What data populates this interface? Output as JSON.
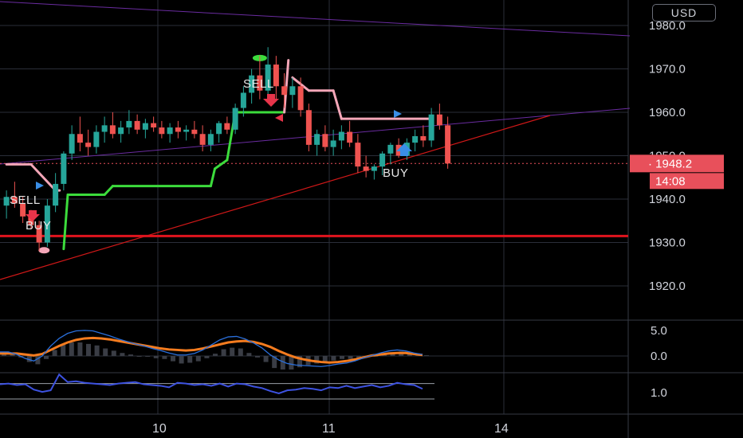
{
  "currency": "USD",
  "price_axis": {
    "ticks": [
      "1980.0",
      "1970.0",
      "1960.0",
      "1950.0",
      "1940.0",
      "1930.0",
      "1920.0"
    ]
  },
  "last_price": {
    "value": "1948.2",
    "countdown": "14:08",
    "color": "#e8505b"
  },
  "time_axis": {
    "ticks": [
      "10",
      "11",
      "14"
    ]
  },
  "macd_axis": {
    "ticks": [
      "5.0",
      "0.0"
    ]
  },
  "osc_axis": {
    "ticks": [
      "1.0"
    ]
  },
  "signals": [
    {
      "label": "SELL",
      "type": "sell"
    },
    {
      "label": "BUY",
      "type": "buy"
    },
    {
      "label": "SELL",
      "type": "sell"
    },
    {
      "label": "BUY",
      "type": "buy"
    }
  ],
  "colors": {
    "up": "#26a69a",
    "down": "#ef5350",
    "trail_bull": "#3cdc3c",
    "trail_bear": "#f4a6b8",
    "macd_line": "#2a6fdb",
    "signal_line": "#f57c1f",
    "osc_line": "#3d52e0",
    "support": "#e0141e",
    "trendline": "#d01818",
    "channel": "#6a2ca0"
  },
  "chart_data": [
    {
      "type": "candlestick",
      "title": "",
      "ylim": [
        1915,
        1985
      ],
      "support_level": 1931.5,
      "last_close": 1948.2,
      "candles": [
        [
          1938.5,
          1942.0,
          1935.5,
          1940.5
        ],
        [
          1940.5,
          1944.0,
          1938.0,
          1939.0
        ],
        [
          1939.0,
          1940.5,
          1934.5,
          1936.0
        ],
        [
          1936.0,
          1937.5,
          1933.0,
          1934.0
        ],
        [
          1934.0,
          1935.0,
          1928.0,
          1930.0
        ],
        [
          1930.0,
          1940.0,
          1929.0,
          1938.5
        ],
        [
          1938.5,
          1946.0,
          1937.0,
          1943.5
        ],
        [
          1943.5,
          1951.0,
          1942.0,
          1950.5
        ],
        [
          1950.5,
          1957.0,
          1949.0,
          1955.0
        ],
        [
          1955.0,
          1959.0,
          1951.0,
          1953.0
        ],
        [
          1953.0,
          1956.0,
          1950.0,
          1952.0
        ],
        [
          1952.0,
          1957.0,
          1950.5,
          1955.5
        ],
        [
          1955.5,
          1959.0,
          1953.0,
          1957.0
        ],
        [
          1957.0,
          1960.0,
          1954.0,
          1955.0
        ],
        [
          1955.0,
          1958.0,
          1953.0,
          1956.5
        ],
        [
          1956.5,
          1960.5,
          1955.0,
          1958.0
        ],
        [
          1958.0,
          1959.5,
          1955.0,
          1956.0
        ],
        [
          1956.0,
          1958.5,
          1954.0,
          1957.5
        ],
        [
          1957.5,
          1959.0,
          1955.5,
          1956.5
        ],
        [
          1956.5,
          1958.0,
          1954.0,
          1955.0
        ],
        [
          1955.0,
          1957.5,
          1953.0,
          1956.5
        ],
        [
          1956.5,
          1958.0,
          1954.0,
          1955.5
        ],
        [
          1955.5,
          1957.0,
          1953.5,
          1956.0
        ],
        [
          1956.0,
          1958.0,
          1954.0,
          1955.0
        ],
        [
          1955.0,
          1957.0,
          1951.0,
          1952.5
        ],
        [
          1952.5,
          1956.0,
          1951.0,
          1955.0
        ],
        [
          1955.0,
          1958.0,
          1953.0,
          1957.5
        ],
        [
          1957.5,
          1959.0,
          1955.0,
          1956.0
        ],
        [
          1956.0,
          1962.0,
          1955.0,
          1961.0
        ],
        [
          1961.0,
          1966.0,
          1959.0,
          1964.5
        ],
        [
          1964.5,
          1970.0,
          1962.0,
          1968.5
        ],
        [
          1968.5,
          1973.0,
          1963.0,
          1965.0
        ],
        [
          1965.0,
          1975.0,
          1963.0,
          1971.0
        ],
        [
          1971.0,
          1973.0,
          1963.0,
          1966.0
        ],
        [
          1966.0,
          1969.0,
          1961.0,
          1964.0
        ],
        [
          1964.0,
          1968.0,
          1961.0,
          1966.0
        ],
        [
          1966.0,
          1968.0,
          1959.0,
          1960.5
        ],
        [
          1960.5,
          1962.0,
          1951.0,
          1952.5
        ],
        [
          1952.5,
          1956.0,
          1950.0,
          1955.0
        ],
        [
          1955.0,
          1957.0,
          1951.0,
          1952.0
        ],
        [
          1952.0,
          1956.0,
          1950.0,
          1953.5
        ],
        [
          1953.5,
          1957.0,
          1951.5,
          1955.5
        ],
        [
          1955.5,
          1958.0,
          1952.0,
          1953.0
        ],
        [
          1953.0,
          1955.0,
          1946.0,
          1947.5
        ],
        [
          1947.5,
          1950.0,
          1945.0,
          1946.5
        ],
        [
          1946.5,
          1948.0,
          1944.5,
          1947.5
        ],
        [
          1947.5,
          1951.0,
          1945.5,
          1950.5
        ],
        [
          1950.5,
          1953.0,
          1948.0,
          1952.5
        ],
        [
          1952.5,
          1954.0,
          1949.5,
          1950.0
        ],
        [
          1950.0,
          1954.0,
          1949.0,
          1953.0
        ],
        [
          1953.0,
          1956.0,
          1951.0,
          1954.5
        ],
        [
          1954.5,
          1957.0,
          1952.0,
          1953.5
        ],
        [
          1953.5,
          1961.0,
          1952.0,
          1959.5
        ],
        [
          1959.5,
          1962.0,
          1956.0,
          1957.0
        ],
        [
          1957.0,
          1959.0,
          1947.0,
          1948.2
        ]
      ],
      "trail_stop": [
        {
          "x": 0,
          "y": 1948.0
        },
        {
          "x": 3,
          "y": 1948.0
        },
        {
          "x": 6,
          "y": 1942.0
        },
        {
          "x": 6.5,
          "y": 1942.0,
          "break": true
        },
        {
          "x": 7,
          "y": 1928.5
        },
        {
          "x": 7.5,
          "y": 1941.0
        },
        {
          "x": 10,
          "y": 1941.0
        },
        {
          "x": 12,
          "y": 1941.0
        },
        {
          "x": 13,
          "y": 1943.0
        },
        {
          "x": 25,
          "y": 1943.0
        },
        {
          "x": 25.5,
          "y": 1947.0
        },
        {
          "x": 27,
          "y": 1949.0
        },
        {
          "x": 28,
          "y": 1960.0
        },
        {
          "x": 34,
          "y": 1960.0
        },
        {
          "x": 34.5,
          "y": 1972.0,
          "break": true
        },
        {
          "x": 35,
          "y": 1968.0
        },
        {
          "x": 37,
          "y": 1965.0
        },
        {
          "x": 40,
          "y": 1965.0
        },
        {
          "x": 41,
          "y": 1958.5
        },
        {
          "x": 52,
          "y": 1958.5
        }
      ]
    },
    {
      "type": "macd",
      "ylim": [
        -3,
        6
      ],
      "macd": [
        0.8,
        0.8,
        0.3,
        -0.5,
        -1.0,
        0.0,
        2.0,
        3.5,
        4.5,
        5.0,
        5.1,
        5.0,
        4.5,
        4.0,
        3.4,
        2.9,
        2.4,
        2.0,
        1.5,
        1.1,
        0.6,
        0.2,
        0.2,
        0.5,
        1.2,
        2.2,
        3.2,
        3.8,
        3.9,
        3.4,
        2.6,
        1.6,
        0.2,
        -0.8,
        -1.5,
        -1.8,
        -1.9,
        -2.0,
        -2.1,
        -1.9,
        -1.6,
        -1.4,
        -1.0,
        -0.4,
        0.1,
        0.6,
        1.0,
        1.2,
        1.0,
        0.6,
        0.3
      ],
      "signal": [
        0.5,
        0.5,
        0.5,
        0.3,
        0.1,
        0.4,
        1.2,
        2.0,
        2.7,
        3.2,
        3.5,
        3.6,
        3.5,
        3.3,
        3.0,
        2.7,
        2.4,
        2.1,
        1.8,
        1.5,
        1.3,
        1.2,
        1.1,
        1.2,
        1.5,
        1.9,
        2.3,
        2.7,
        2.9,
        3.0,
        2.8,
        2.4,
        1.8,
        1.0,
        0.3,
        -0.3,
        -0.7,
        -1.0,
        -1.2,
        -1.3,
        -1.2,
        -1.0,
        -0.7,
        -0.3,
        0.1,
        0.3,
        0.5,
        0.6,
        0.6,
        0.4,
        0.2
      ]
    },
    {
      "type": "line",
      "ylim": [
        -1.5,
        2.5
      ],
      "upper_band": 1.2,
      "lower_band": 0.0,
      "values": [
        1.1,
        1.2,
        1.0,
        1.1,
        0.4,
        0.1,
        0.3,
        2.4,
        1.4,
        1.5,
        1.3,
        1.2,
        1.1,
        1.0,
        1.2,
        1.3,
        1.4,
        1.1,
        1.0,
        0.9,
        0.7,
        1.3,
        1.2,
        1.0,
        1.1,
        0.9,
        1.2,
        0.8,
        1.2,
        1.1,
        0.8,
        0.6,
        0.2,
        -0.1,
        0.3,
        0.4,
        0.6,
        0.5,
        0.3,
        0.7,
        0.6,
        0.9,
        0.6,
        0.8,
        1.0,
        0.7,
        0.9,
        1.3,
        1.1,
        1.0,
        0.5
      ]
    }
  ]
}
